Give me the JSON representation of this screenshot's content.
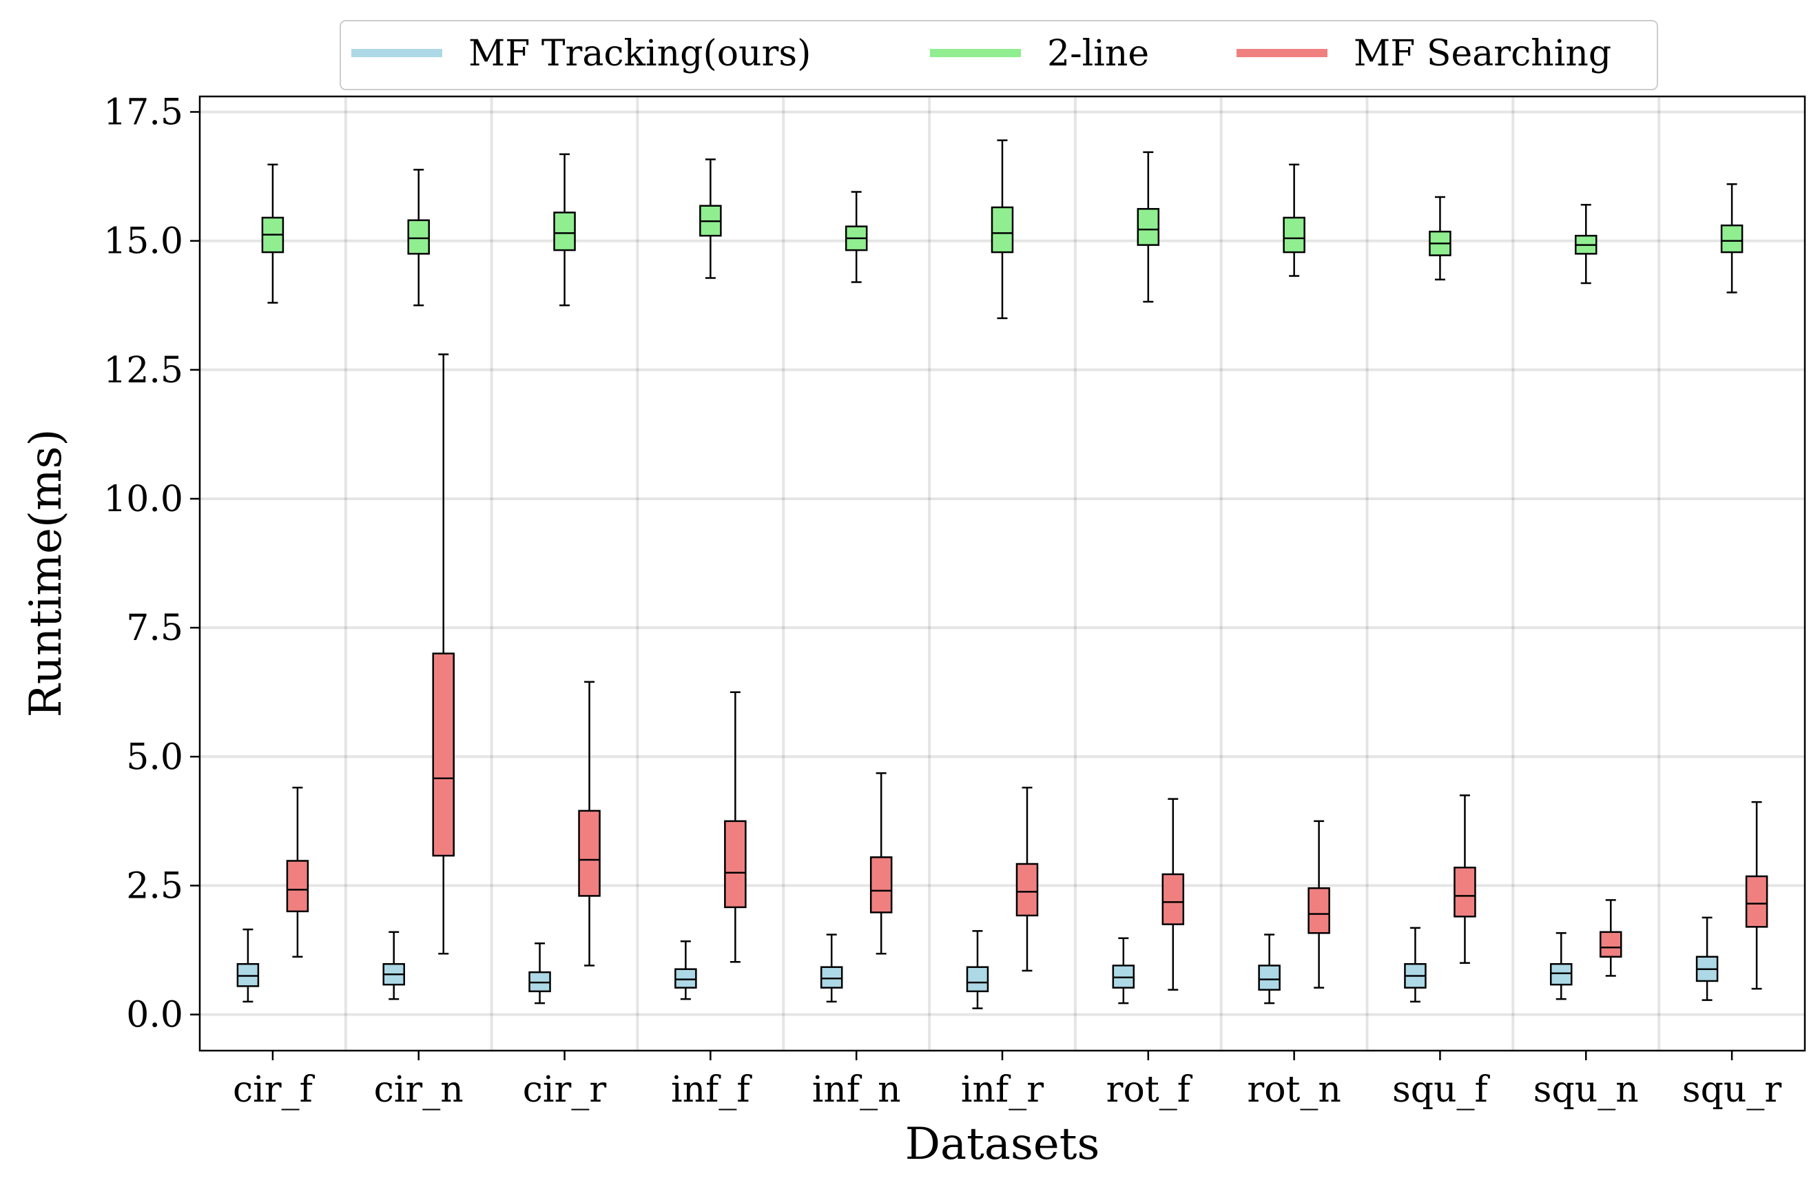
{
  "chart_data": {
    "type": "boxplot",
    "title": "",
    "xlabel": "Datasets",
    "ylabel": "Runtime(ms)",
    "ylim": [
      -0.7,
      17.8
    ],
    "yticks": [
      0.0,
      2.5,
      5.0,
      7.5,
      10.0,
      12.5,
      15.0,
      17.5
    ],
    "ytick_labels": [
      "0.0",
      "2.5",
      "5.0",
      "7.5",
      "10.0",
      "12.5",
      "15.0",
      "17.5"
    ],
    "grid": true,
    "legend_position": "top-center",
    "categories": [
      "cir_f",
      "cir_n",
      "cir_r",
      "inf_f",
      "inf_n",
      "inf_r",
      "rot_f",
      "rot_n",
      "squ_f",
      "squ_n",
      "squ_r"
    ],
    "series": [
      {
        "name": "MF Tracking(ours)",
        "color": "#add8e6",
        "stats": [
          {
            "whislo": 0.25,
            "q1": 0.55,
            "med": 0.75,
            "q3": 0.98,
            "whishi": 1.65
          },
          {
            "whislo": 0.3,
            "q1": 0.58,
            "med": 0.78,
            "q3": 0.98,
            "whishi": 1.6
          },
          {
            "whislo": 0.22,
            "q1": 0.45,
            "med": 0.62,
            "q3": 0.82,
            "whishi": 1.38
          },
          {
            "whislo": 0.3,
            "q1": 0.52,
            "med": 0.68,
            "q3": 0.88,
            "whishi": 1.42
          },
          {
            "whislo": 0.25,
            "q1": 0.52,
            "med": 0.7,
            "q3": 0.92,
            "whishi": 1.55
          },
          {
            "whislo": 0.12,
            "q1": 0.45,
            "med": 0.62,
            "q3": 0.92,
            "whishi": 1.62
          },
          {
            "whislo": 0.22,
            "q1": 0.52,
            "med": 0.72,
            "q3": 0.95,
            "whishi": 1.48
          },
          {
            "whislo": 0.22,
            "q1": 0.48,
            "med": 0.68,
            "q3": 0.95,
            "whishi": 1.55
          },
          {
            "whislo": 0.25,
            "q1": 0.52,
            "med": 0.75,
            "q3": 0.98,
            "whishi": 1.68
          },
          {
            "whislo": 0.3,
            "q1": 0.58,
            "med": 0.8,
            "q3": 0.98,
            "whishi": 1.58
          },
          {
            "whislo": 0.28,
            "q1": 0.65,
            "med": 0.88,
            "q3": 1.12,
            "whishi": 1.88
          }
        ]
      },
      {
        "name": "2-line",
        "color": "#90ee90",
        "stats": [
          {
            "whislo": 13.8,
            "q1": 14.78,
            "med": 15.12,
            "q3": 15.45,
            "whishi": 16.48
          },
          {
            "whislo": 13.75,
            "q1": 14.75,
            "med": 15.05,
            "q3": 15.4,
            "whishi": 16.38
          },
          {
            "whislo": 13.75,
            "q1": 14.82,
            "med": 15.15,
            "q3": 15.55,
            "whishi": 16.68
          },
          {
            "whislo": 14.28,
            "q1": 15.1,
            "med": 15.38,
            "q3": 15.68,
            "whishi": 16.58
          },
          {
            "whislo": 14.2,
            "q1": 14.82,
            "med": 15.05,
            "q3": 15.28,
            "whishi": 15.95
          },
          {
            "whislo": 13.5,
            "q1": 14.78,
            "med": 15.15,
            "q3": 15.65,
            "whishi": 16.95
          },
          {
            "whislo": 13.82,
            "q1": 14.92,
            "med": 15.22,
            "q3": 15.62,
            "whishi": 16.72
          },
          {
            "whislo": 14.32,
            "q1": 14.78,
            "med": 15.05,
            "q3": 15.45,
            "whishi": 16.48
          },
          {
            "whislo": 14.25,
            "q1": 14.72,
            "med": 14.95,
            "q3": 15.18,
            "whishi": 15.85
          },
          {
            "whislo": 14.18,
            "q1": 14.75,
            "med": 14.92,
            "q3": 15.1,
            "whishi": 15.7
          },
          {
            "whislo": 14.0,
            "q1": 14.78,
            "med": 15.0,
            "q3": 15.3,
            "whishi": 16.1
          }
        ]
      },
      {
        "name": "MF Searching",
        "color": "#f08080",
        "stats": [
          {
            "whislo": 1.12,
            "q1": 2.0,
            "med": 2.42,
            "q3": 2.98,
            "whishi": 4.4
          },
          {
            "whislo": 1.18,
            "q1": 3.08,
            "med": 4.58,
            "q3": 7.0,
            "whishi": 12.8
          },
          {
            "whislo": 0.95,
            "q1": 2.3,
            "med": 3.0,
            "q3": 3.95,
            "whishi": 6.45
          },
          {
            "whislo": 1.02,
            "q1": 2.08,
            "med": 2.75,
            "q3": 3.75,
            "whishi": 6.25
          },
          {
            "whislo": 1.18,
            "q1": 1.98,
            "med": 2.4,
            "q3": 3.05,
            "whishi": 4.68
          },
          {
            "whislo": 0.85,
            "q1": 1.92,
            "med": 2.38,
            "q3": 2.92,
            "whishi": 4.4
          },
          {
            "whislo": 0.48,
            "q1": 1.75,
            "med": 2.18,
            "q3": 2.72,
            "whishi": 4.18
          },
          {
            "whislo": 0.52,
            "q1": 1.58,
            "med": 1.95,
            "q3": 2.45,
            "whishi": 3.75
          },
          {
            "whislo": 1.0,
            "q1": 1.9,
            "med": 2.3,
            "q3": 2.85,
            "whishi": 4.25
          },
          {
            "whislo": 0.75,
            "q1": 1.12,
            "med": 1.3,
            "q3": 1.6,
            "whishi": 2.22
          },
          {
            "whislo": 0.5,
            "q1": 1.7,
            "med": 2.15,
            "q3": 2.68,
            "whishi": 4.12
          }
        ]
      }
    ]
  }
}
